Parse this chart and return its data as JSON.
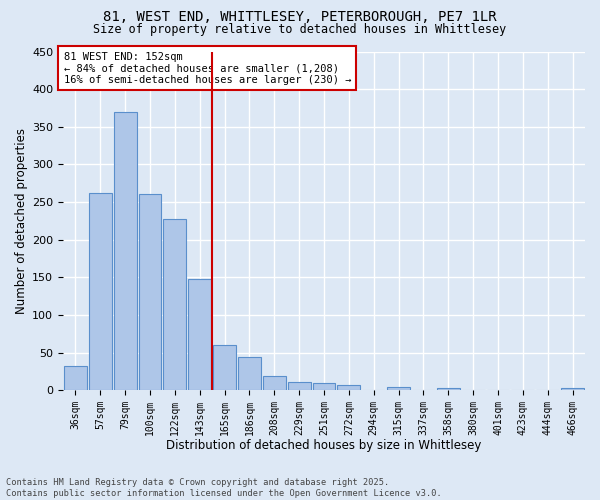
{
  "title1": "81, WEST END, WHITTLESEY, PETERBOROUGH, PE7 1LR",
  "title2": "Size of property relative to detached houses in Whittlesey",
  "xlabel": "Distribution of detached houses by size in Whittlesey",
  "ylabel": "Number of detached properties",
  "bar_labels": [
    "36sqm",
    "57sqm",
    "79sqm",
    "100sqm",
    "122sqm",
    "143sqm",
    "165sqm",
    "186sqm",
    "208sqm",
    "229sqm",
    "251sqm",
    "272sqm",
    "294sqm",
    "315sqm",
    "337sqm",
    "358sqm",
    "380sqm",
    "401sqm",
    "423sqm",
    "444sqm",
    "466sqm"
  ],
  "bar_values": [
    33,
    262,
    370,
    261,
    228,
    148,
    60,
    44,
    19,
    11,
    10,
    7,
    0,
    5,
    0,
    3,
    0,
    0,
    0,
    0,
    3
  ],
  "bar_color": "#aec6e8",
  "bar_edge_color": "#5a8fcc",
  "annotation_line1": "81 WEST END: 152sqm",
  "annotation_line2": "← 84% of detached houses are smaller (1,208)",
  "annotation_line3": "16% of semi-detached houses are larger (230) →",
  "annotation_box_color": "#ffffff",
  "annotation_box_edgecolor": "#cc0000",
  "vline_color": "#cc0000",
  "vline_x_index": 5.5,
  "background_color": "#dde8f5",
  "grid_color": "#ffffff",
  "footer1": "Contains HM Land Registry data © Crown copyright and database right 2025.",
  "footer2": "Contains public sector information licensed under the Open Government Licence v3.0.",
  "ylim": [
    0,
    450
  ],
  "yticks": [
    0,
    50,
    100,
    150,
    200,
    250,
    300,
    350,
    400,
    450
  ]
}
